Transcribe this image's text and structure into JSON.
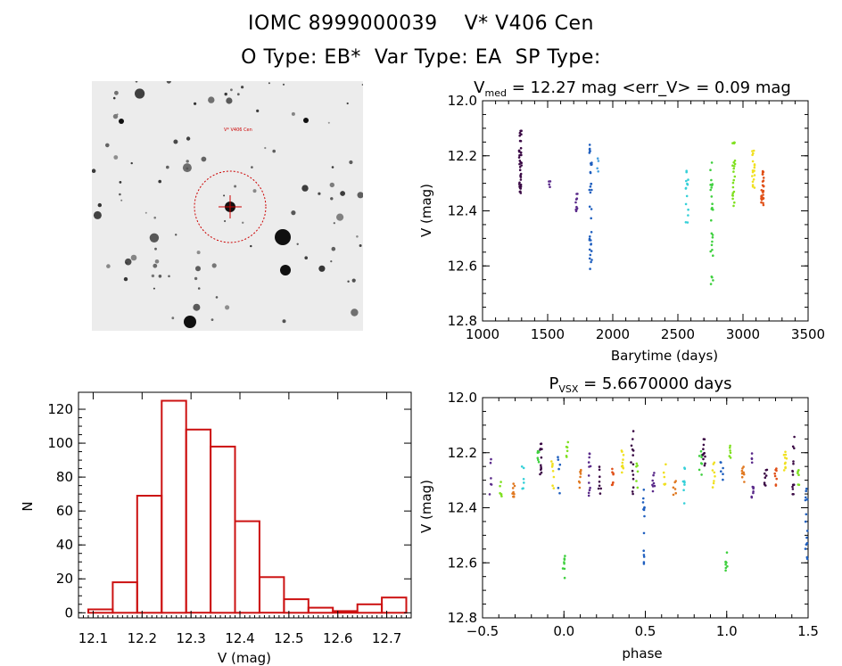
{
  "header": {
    "line1": "IOMC 8999000039    V* V406 Cen",
    "line2": "O Type: EB*  Var Type: EA  SP Type:"
  },
  "image_panel": {
    "annotation": "V* V406 Cen",
    "crosshair_color": "#cc0000"
  },
  "chart_data": [
    {
      "id": "lightcurve",
      "type": "scatter",
      "title": "V_med = 12.27 mag <err_V> = 0.09 mag",
      "title_parts": {
        "v": "V",
        "sub": "med",
        "rest": " = 12.27 mag <err_V> = 0.09 mag"
      },
      "xlabel": "Barytime (days)",
      "ylabel": "V (mag)",
      "xlim": [
        1000,
        3500
      ],
      "ylim": [
        12.8,
        12.0
      ],
      "xticks": [
        1000,
        1500,
        2000,
        2500,
        3000,
        3500
      ],
      "yticks": [
        12.0,
        12.2,
        12.4,
        12.6,
        12.8
      ],
      "ytick_labels": [
        "12.0",
        "12.2",
        "12.4",
        "12.6",
        "12.8"
      ],
      "clusters": [
        {
          "x": 1290,
          "y_range": [
            12.1,
            12.36
          ],
          "n": 40,
          "color": "#3b0a45"
        },
        {
          "x": 1510,
          "y_range": [
            12.29,
            12.32
          ],
          "n": 4,
          "color": "#5a2a8a"
        },
        {
          "x": 1720,
          "y_range": [
            12.33,
            12.43
          ],
          "n": 10,
          "color": "#5a2a8a"
        },
        {
          "x": 1830,
          "y_range": [
            12.14,
            12.62
          ],
          "n": 36,
          "color": "#1f5fbf"
        },
        {
          "x": 1880,
          "y_range": [
            12.2,
            12.28
          ],
          "n": 4,
          "color": "#4aa0e0"
        },
        {
          "x": 2570,
          "y_range": [
            12.24,
            12.45
          ],
          "n": 14,
          "color": "#35d0d8"
        },
        {
          "x": 2760,
          "y_range": [
            12.21,
            12.67
          ],
          "n": 26,
          "color": "#3fd03f"
        },
        {
          "x": 2930,
          "y_range": [
            12.15,
            12.4
          ],
          "n": 22,
          "color": "#7fe020"
        },
        {
          "x": 3080,
          "y_range": [
            12.18,
            12.33
          ],
          "n": 18,
          "color": "#f0e020"
        },
        {
          "x": 3150,
          "y_range": [
            12.25,
            12.38
          ],
          "n": 26,
          "color": "#e05018"
        }
      ]
    },
    {
      "id": "histogram",
      "type": "bar",
      "title": "",
      "xlabel": "V (mag)",
      "ylabel": "N",
      "xlim": [
        12.07,
        12.75
      ],
      "ylim": [
        -3,
        130
      ],
      "bin_width": 0.05,
      "bin_left_edges": [
        12.09,
        12.14,
        12.19,
        12.24,
        12.29,
        12.34,
        12.39,
        12.44,
        12.49,
        12.54,
        12.59,
        12.64,
        12.69
      ],
      "values": [
        2,
        18,
        69,
        125,
        108,
        98,
        54,
        21,
        8,
        3,
        1,
        5,
        9
      ],
      "extra_bar": {
        "left": 12.54,
        "value": 1
      },
      "xticks": [
        12.1,
        12.2,
        12.3,
        12.4,
        12.5,
        12.6,
        12.7
      ],
      "xtick_labels": [
        "12.1",
        "12.2",
        "12.3",
        "12.4",
        "12.5",
        "12.6",
        "12.7"
      ],
      "yticks": [
        0,
        20,
        40,
        60,
        80,
        100,
        120
      ],
      "ytick_labels": [
        "0",
        "20",
        "40",
        "60",
        "80",
        "100",
        "120"
      ],
      "bar_color": "#cc1111"
    },
    {
      "id": "phased",
      "type": "scatter",
      "title": "P_VSX = 5.6670000 days",
      "title_parts": {
        "v": "P",
        "sub": "VSX",
        "rest": " = 5.6670000 days"
      },
      "xlabel": "phase",
      "ylabel": "V (mag)",
      "xlim": [
        -0.5,
        1.5
      ],
      "ylim": [
        12.8,
        12.0
      ],
      "xticks": [
        -0.5,
        0.0,
        0.5,
        1.0,
        1.5
      ],
      "xtick_labels": [
        "−0.5",
        "0.0",
        "0.5",
        "1.0",
        "1.5"
      ],
      "yticks": [
        12.0,
        12.2,
        12.4,
        12.6,
        12.8
      ],
      "ytick_labels": [
        "12.0",
        "12.2",
        "12.4",
        "12.6",
        "12.8"
      ],
      "clusters": [
        {
          "x": -0.45,
          "y_range": [
            12.22,
            12.36
          ],
          "n": 6,
          "color": "#5a2a8a"
        },
        {
          "x": -0.39,
          "y_range": [
            12.3,
            12.36
          ],
          "n": 6,
          "color": "#7fe020"
        },
        {
          "x": -0.31,
          "y_range": [
            12.31,
            12.37
          ],
          "n": 8,
          "color": "#e07820"
        },
        {
          "x": -0.25,
          "y_range": [
            12.24,
            12.34
          ],
          "n": 6,
          "color": "#35d0d8"
        },
        {
          "x": -0.16,
          "y_range": [
            12.18,
            12.24
          ],
          "n": 6,
          "color": "#3fd03f"
        },
        {
          "x": -0.14,
          "y_range": [
            12.14,
            12.28
          ],
          "n": 12,
          "color": "#3b0a45"
        },
        {
          "x": -0.07,
          "y_range": [
            12.2,
            12.34
          ],
          "n": 8,
          "color": "#f0e020"
        },
        {
          "x": -0.03,
          "y_range": [
            12.2,
            12.36
          ],
          "n": 6,
          "color": "#1f5fbf"
        },
        {
          "x": 0.0,
          "y_range": [
            12.56,
            12.66
          ],
          "n": 8,
          "color": "#3fd03f"
        },
        {
          "x": 0.02,
          "y_range": [
            12.16,
            12.22
          ],
          "n": 6,
          "color": "#7fe020"
        },
        {
          "x": 0.1,
          "y_range": [
            12.25,
            12.34
          ],
          "n": 8,
          "color": "#e07820"
        },
        {
          "x": 0.16,
          "y_range": [
            12.2,
            12.38
          ],
          "n": 12,
          "color": "#5a2a8a"
        },
        {
          "x": 0.22,
          "y_range": [
            12.25,
            12.36
          ],
          "n": 8,
          "color": "#3b0a45"
        },
        {
          "x": 0.3,
          "y_range": [
            12.25,
            12.33
          ],
          "n": 8,
          "color": "#e05018"
        },
        {
          "x": 0.36,
          "y_range": [
            12.19,
            12.28
          ],
          "n": 10,
          "color": "#f0e020"
        },
        {
          "x": 0.42,
          "y_range": [
            12.12,
            12.36
          ],
          "n": 14,
          "color": "#3b0a45"
        },
        {
          "x": 0.45,
          "y_range": [
            12.22,
            12.33
          ],
          "n": 6,
          "color": "#7fe020"
        },
        {
          "x": 0.49,
          "y_range": [
            12.32,
            12.62
          ],
          "n": 14,
          "color": "#1f5fbf"
        },
        {
          "x": 0.55,
          "y_range": [
            12.27,
            12.4
          ],
          "n": 8,
          "color": "#5a2a8a"
        },
        {
          "x": 0.62,
          "y_range": [
            12.23,
            12.34
          ],
          "n": 6,
          "color": "#f0e020"
        },
        {
          "x": 0.68,
          "y_range": [
            12.3,
            12.36
          ],
          "n": 6,
          "color": "#e07820"
        },
        {
          "x": 0.74,
          "y_range": [
            12.24,
            12.4
          ],
          "n": 8,
          "color": "#35d0d8"
        },
        {
          "x": 0.84,
          "y_range": [
            12.18,
            12.28
          ],
          "n": 8,
          "color": "#3fd03f"
        },
        {
          "x": 0.86,
          "y_range": [
            12.14,
            12.28
          ],
          "n": 12,
          "color": "#3b0a45"
        },
        {
          "x": 0.92,
          "y_range": [
            12.2,
            12.34
          ],
          "n": 8,
          "color": "#f0e020"
        },
        {
          "x": 0.97,
          "y_range": [
            12.2,
            12.36
          ],
          "n": 6,
          "color": "#1f5fbf"
        },
        {
          "x": 1.0,
          "y_range": [
            12.56,
            12.66
          ],
          "n": 8,
          "color": "#3fd03f"
        },
        {
          "x": 1.02,
          "y_range": [
            12.16,
            12.22
          ],
          "n": 6,
          "color": "#7fe020"
        },
        {
          "x": 1.1,
          "y_range": [
            12.25,
            12.34
          ],
          "n": 8,
          "color": "#e07820"
        },
        {
          "x": 1.16,
          "y_range": [
            12.2,
            12.38
          ],
          "n": 12,
          "color": "#5a2a8a"
        },
        {
          "x": 1.24,
          "y_range": [
            12.25,
            12.36
          ],
          "n": 8,
          "color": "#3b0a45"
        },
        {
          "x": 1.3,
          "y_range": [
            12.25,
            12.33
          ],
          "n": 8,
          "color": "#e05018"
        },
        {
          "x": 1.36,
          "y_range": [
            12.19,
            12.3
          ],
          "n": 10,
          "color": "#f0e020"
        },
        {
          "x": 1.41,
          "y_range": [
            12.12,
            12.36
          ],
          "n": 14,
          "color": "#3b0a45"
        },
        {
          "x": 1.44,
          "y_range": [
            12.22,
            12.33
          ],
          "n": 6,
          "color": "#7fe020"
        },
        {
          "x": 1.49,
          "y_range": [
            12.32,
            12.62
          ],
          "n": 14,
          "color": "#1f5fbf"
        }
      ]
    }
  ]
}
